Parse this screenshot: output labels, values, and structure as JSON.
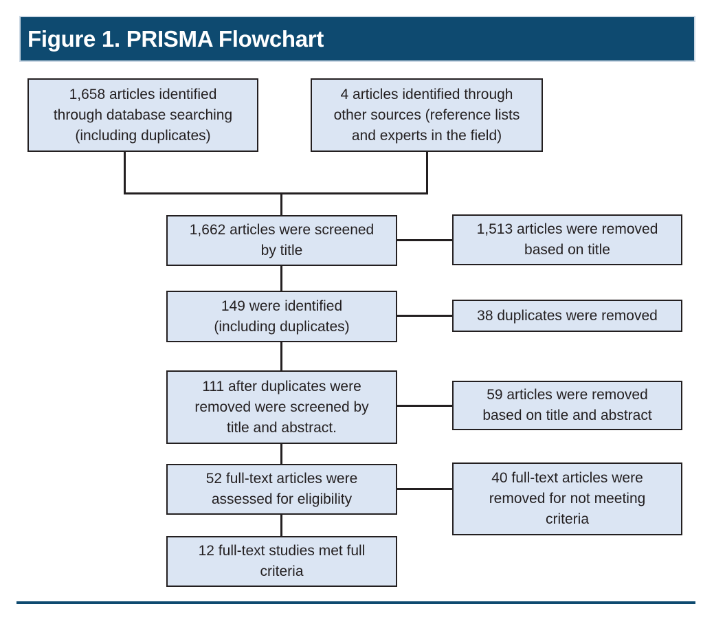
{
  "header": {
    "title": "Figure 1. PRISMA Flowchart"
  },
  "flowchart": {
    "sources": [
      {
        "text": "1,658 articles identified\nthrough database searching\n(including duplicates)"
      },
      {
        "text": "4 articles identified through\nother sources (reference lists\nand experts in the field)"
      }
    ],
    "steps": [
      {
        "text": "1,662 articles were screened\nby title"
      },
      {
        "text": "149 were identified\n(including duplicates)"
      },
      {
        "text": "111 after duplicates were\nremoved were screened by\ntitle and abstract."
      },
      {
        "text": "52 full-text articles were\nassessed for eligibility"
      },
      {
        "text": "12 full-text studies met full\ncriteria"
      }
    ],
    "exclusions": [
      {
        "text": "1,513 articles were removed\nbased on title"
      },
      {
        "text": "38 duplicates were removed"
      },
      {
        "text": "59 articles were removed\nbased on title and abstract"
      },
      {
        "text": "40 full-text articles were\nremoved for not meeting\ncriteria"
      }
    ]
  },
  "colors": {
    "header_bg": "#0E4A70",
    "header_text": "#FFFFFF",
    "box_fill": "#DBE5F3",
    "box_border": "#231F20",
    "connector": "#231F20",
    "bottom_rule": "#0E4A70"
  }
}
